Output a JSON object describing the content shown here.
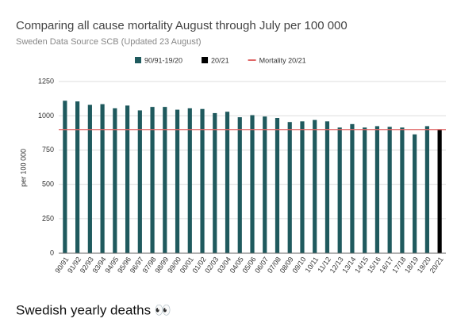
{
  "chart_data": {
    "type": "bar",
    "title": "Comparing all cause mortality August through July per 100 000",
    "subtitle": "Sweden Data Source SCB (Updated 23 August)",
    "ylabel": "per 100 000",
    "categories": [
      "90/91",
      "91/92",
      "92/93",
      "93/94",
      "94/95",
      "95/96",
      "96/97",
      "97/98",
      "98/99",
      "99/00",
      "00/01",
      "01/02",
      "02/03",
      "03/04",
      "04/05",
      "05/06",
      "06/07",
      "07/08",
      "08/09",
      "09/10",
      "10/11",
      "11/12",
      "12/13",
      "13/14",
      "14/15",
      "15/16",
      "16/17",
      "17/18",
      "18/19",
      "19/20",
      "20/21"
    ],
    "series": [
      {
        "name": "90/91-19/20",
        "color": "#1f5a5e",
        "values": [
          1110,
          1105,
          1080,
          1085,
          1055,
          1075,
          1040,
          1065,
          1065,
          1045,
          1055,
          1050,
          1020,
          1030,
          990,
          1005,
          995,
          985,
          955,
          960,
          970,
          960,
          915,
          940,
          915,
          925,
          920,
          915,
          865,
          925,
          null
        ]
      },
      {
        "name": "20/21",
        "color": "#000000",
        "values": [
          null,
          null,
          null,
          null,
          null,
          null,
          null,
          null,
          null,
          null,
          null,
          null,
          null,
          null,
          null,
          null,
          null,
          null,
          null,
          null,
          null,
          null,
          null,
          null,
          null,
          null,
          null,
          null,
          null,
          null,
          900
        ]
      }
    ],
    "reference_line": {
      "name": "Mortality 20/21",
      "color": "#e06666",
      "value": 900
    },
    "ylim": [
      0,
      1250
    ],
    "yticks": [
      0,
      250,
      500,
      750,
      1000,
      1250
    ],
    "grid": true,
    "caption": "Swedish yearly deaths 👀"
  }
}
